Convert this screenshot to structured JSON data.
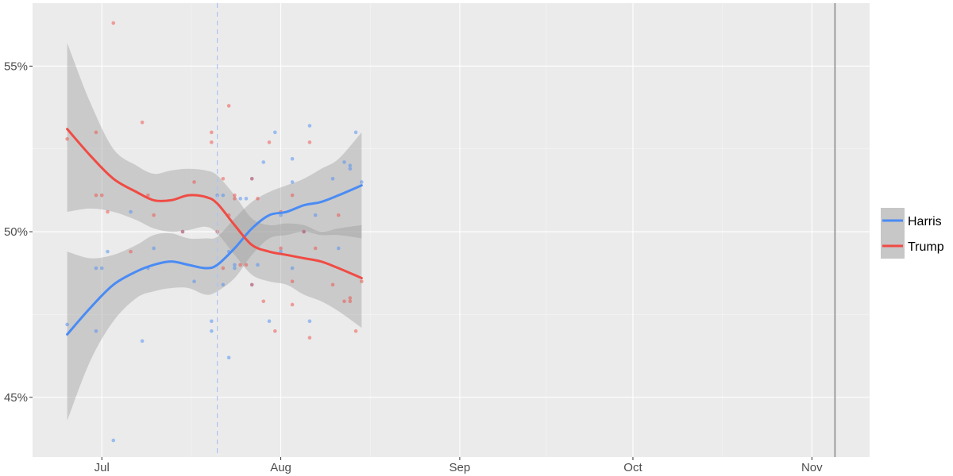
{
  "chart_data": {
    "type": "scatter",
    "title": "",
    "xlabel": "",
    "ylabel": "",
    "x_ticks": [
      {
        "date": "2024-07-01",
        "label": "Jul"
      },
      {
        "date": "2024-08-01",
        "label": "Aug"
      },
      {
        "date": "2024-09-01",
        "label": "Sep"
      },
      {
        "date": "2024-10-01",
        "label": "Oct"
      },
      {
        "date": "2024-11-01",
        "label": "Nov"
      }
    ],
    "y_ticks": [
      {
        "value": 45,
        "label": "45%"
      },
      {
        "value": 50,
        "label": "50%"
      },
      {
        "value": 55,
        "label": "55%"
      }
    ],
    "xlim": [
      "2024-06-19",
      "2024-11-11"
    ],
    "ylim": [
      43.2,
      56.9
    ],
    "grid": true,
    "legend_position": "right",
    "annotations": [
      {
        "type": "vline",
        "date": "2024-07-21",
        "style": "dashed",
        "color": "#a9c4f5"
      },
      {
        "type": "vline",
        "date": "2024-11-05",
        "style": "solid",
        "color": "#8c8c8c"
      }
    ],
    "series": [
      {
        "name": "Harris",
        "color": "#4a8bf4",
        "points": [
          [
            "2024-06-25",
            47.2
          ],
          [
            "2024-06-30",
            47.0
          ],
          [
            "2024-06-30",
            48.9
          ],
          [
            "2024-07-01",
            48.9
          ],
          [
            "2024-07-02",
            49.4
          ],
          [
            "2024-07-03",
            43.7
          ],
          [
            "2024-07-06",
            50.6
          ],
          [
            "2024-07-08",
            46.7
          ],
          [
            "2024-07-09",
            48.9
          ],
          [
            "2024-07-10",
            49.5
          ],
          [
            "2024-07-15",
            50.0
          ],
          [
            "2024-07-17",
            48.5
          ],
          [
            "2024-07-20",
            47.3
          ],
          [
            "2024-07-20",
            47.0
          ],
          [
            "2024-07-21",
            51.1
          ],
          [
            "2024-07-22",
            48.4
          ],
          [
            "2024-07-22",
            51.1
          ],
          [
            "2024-07-23",
            46.2
          ],
          [
            "2024-07-23",
            49.4
          ],
          [
            "2024-07-24",
            48.9
          ],
          [
            "2024-07-24",
            49.0
          ],
          [
            "2024-07-25",
            51.0
          ],
          [
            "2024-07-26",
            51.0
          ],
          [
            "2024-07-27",
            48.4
          ],
          [
            "2024-07-27",
            51.6
          ],
          [
            "2024-07-28",
            49.0
          ],
          [
            "2024-07-29",
            52.1
          ],
          [
            "2024-07-30",
            47.3
          ],
          [
            "2024-07-31",
            53.0
          ],
          [
            "2024-08-01",
            50.5
          ],
          [
            "2024-08-01",
            49.4
          ],
          [
            "2024-08-03",
            52.2
          ],
          [
            "2024-08-03",
            51.5
          ],
          [
            "2024-08-03",
            48.9
          ],
          [
            "2024-08-05",
            50.0
          ],
          [
            "2024-08-06",
            47.3
          ],
          [
            "2024-08-06",
            53.2
          ],
          [
            "2024-08-07",
            50.5
          ],
          [
            "2024-08-10",
            51.6
          ],
          [
            "2024-08-11",
            49.5
          ],
          [
            "2024-08-12",
            52.1
          ],
          [
            "2024-08-13",
            51.9
          ],
          [
            "2024-08-13",
            52.0
          ],
          [
            "2024-08-14",
            53.0
          ],
          [
            "2024-08-15",
            51.5
          ]
        ],
        "trend": [
          [
            "2024-06-25",
            46.9
          ],
          [
            "2024-06-29",
            47.7
          ],
          [
            "2024-07-03",
            48.4
          ],
          [
            "2024-07-07",
            48.8
          ],
          [
            "2024-07-10",
            49.0
          ],
          [
            "2024-07-13",
            49.1
          ],
          [
            "2024-07-16",
            49.0
          ],
          [
            "2024-07-19",
            48.9
          ],
          [
            "2024-07-21",
            49.0
          ],
          [
            "2024-07-24",
            49.5
          ],
          [
            "2024-07-27",
            50.1
          ],
          [
            "2024-07-30",
            50.5
          ],
          [
            "2024-08-02",
            50.6
          ],
          [
            "2024-08-05",
            50.8
          ],
          [
            "2024-08-08",
            50.9
          ],
          [
            "2024-08-11",
            51.1
          ],
          [
            "2024-08-15",
            51.4
          ]
        ],
        "ci_upper": [
          [
            "2024-06-25",
            49.4
          ],
          [
            "2024-06-29",
            49.2
          ],
          [
            "2024-07-03",
            49.3
          ],
          [
            "2024-07-07",
            49.6
          ],
          [
            "2024-07-10",
            49.9
          ],
          [
            "2024-07-13",
            49.95
          ],
          [
            "2024-07-16",
            49.8
          ],
          [
            "2024-07-19",
            49.8
          ],
          [
            "2024-07-21",
            49.85
          ],
          [
            "2024-07-24",
            50.4
          ],
          [
            "2024-07-27",
            50.9
          ],
          [
            "2024-07-30",
            51.2
          ],
          [
            "2024-08-02",
            51.4
          ],
          [
            "2024-08-05",
            51.6
          ],
          [
            "2024-08-08",
            51.9
          ],
          [
            "2024-08-11",
            52.2
          ],
          [
            "2024-08-15",
            53.0
          ]
        ],
        "ci_lower": [
          [
            "2024-06-25",
            44.3
          ],
          [
            "2024-06-29",
            46.1
          ],
          [
            "2024-07-03",
            47.3
          ],
          [
            "2024-07-07",
            48.0
          ],
          [
            "2024-07-10",
            48.2
          ],
          [
            "2024-07-13",
            48.3
          ],
          [
            "2024-07-16",
            48.3
          ],
          [
            "2024-07-19",
            48.1
          ],
          [
            "2024-07-21",
            48.2
          ],
          [
            "2024-07-24",
            48.6
          ],
          [
            "2024-07-27",
            49.3
          ],
          [
            "2024-07-30",
            49.8
          ],
          [
            "2024-08-02",
            49.9
          ],
          [
            "2024-08-05",
            50.0
          ],
          [
            "2024-08-08",
            49.9
          ],
          [
            "2024-08-11",
            49.9
          ],
          [
            "2024-08-15",
            49.8
          ]
        ]
      },
      {
        "name": "Trump",
        "color": "#f04b44",
        "points": [
          [
            "2024-06-25",
            52.8
          ],
          [
            "2024-06-30",
            53.0
          ],
          [
            "2024-06-30",
            51.1
          ],
          [
            "2024-07-01",
            51.1
          ],
          [
            "2024-07-02",
            50.6
          ],
          [
            "2024-07-03",
            56.3
          ],
          [
            "2024-07-06",
            49.4
          ],
          [
            "2024-07-08",
            53.3
          ],
          [
            "2024-07-09",
            51.1
          ],
          [
            "2024-07-10",
            50.5
          ],
          [
            "2024-07-15",
            50.0
          ],
          [
            "2024-07-17",
            51.5
          ],
          [
            "2024-07-20",
            52.7
          ],
          [
            "2024-07-20",
            53.0
          ],
          [
            "2024-07-21",
            50.0
          ],
          [
            "2024-07-22",
            51.6
          ],
          [
            "2024-07-22",
            48.9
          ],
          [
            "2024-07-23",
            53.8
          ],
          [
            "2024-07-23",
            50.5
          ],
          [
            "2024-07-24",
            51.1
          ],
          [
            "2024-07-24",
            51.0
          ],
          [
            "2024-07-25",
            49.0
          ],
          [
            "2024-07-26",
            49.0
          ],
          [
            "2024-07-27",
            51.6
          ],
          [
            "2024-07-27",
            48.4
          ],
          [
            "2024-07-28",
            51.0
          ],
          [
            "2024-07-29",
            47.9
          ],
          [
            "2024-07-30",
            52.7
          ],
          [
            "2024-07-31",
            47.0
          ],
          [
            "2024-08-01",
            49.5
          ],
          [
            "2024-08-01",
            50.6
          ],
          [
            "2024-08-03",
            47.8
          ],
          [
            "2024-08-03",
            48.5
          ],
          [
            "2024-08-03",
            51.1
          ],
          [
            "2024-08-05",
            50.0
          ],
          [
            "2024-08-06",
            52.7
          ],
          [
            "2024-08-06",
            46.8
          ],
          [
            "2024-08-07",
            49.5
          ],
          [
            "2024-08-10",
            48.4
          ],
          [
            "2024-08-11",
            50.5
          ],
          [
            "2024-08-12",
            47.9
          ],
          [
            "2024-08-13",
            48.0
          ],
          [
            "2024-08-13",
            47.9
          ],
          [
            "2024-08-14",
            47.0
          ],
          [
            "2024-08-15",
            48.5
          ]
        ],
        "trend": [
          [
            "2024-06-25",
            53.1
          ],
          [
            "2024-06-29",
            52.3
          ],
          [
            "2024-07-03",
            51.6
          ],
          [
            "2024-07-07",
            51.2
          ],
          [
            "2024-07-10",
            50.95
          ],
          [
            "2024-07-13",
            50.95
          ],
          [
            "2024-07-16",
            51.1
          ],
          [
            "2024-07-19",
            51.05
          ],
          [
            "2024-07-21",
            50.85
          ],
          [
            "2024-07-24",
            50.2
          ],
          [
            "2024-07-27",
            49.6
          ],
          [
            "2024-07-30",
            49.4
          ],
          [
            "2024-08-02",
            49.3
          ],
          [
            "2024-08-05",
            49.2
          ],
          [
            "2024-08-08",
            49.1
          ],
          [
            "2024-08-11",
            48.9
          ],
          [
            "2024-08-15",
            48.6
          ]
        ],
        "ci_upper": [
          [
            "2024-06-25",
            55.7
          ],
          [
            "2024-06-29",
            53.9
          ],
          [
            "2024-07-03",
            52.5
          ],
          [
            "2024-07-07",
            52.0
          ],
          [
            "2024-07-10",
            51.75
          ],
          [
            "2024-07-13",
            51.85
          ],
          [
            "2024-07-16",
            51.9
          ],
          [
            "2024-07-19",
            51.85
          ],
          [
            "2024-07-21",
            51.7
          ],
          [
            "2024-07-24",
            51.1
          ],
          [
            "2024-07-27",
            50.4
          ],
          [
            "2024-07-30",
            50.2
          ],
          [
            "2024-08-02",
            50.25
          ],
          [
            "2024-08-05",
            50.2
          ],
          [
            "2024-08-08",
            50.0
          ],
          [
            "2024-08-11",
            50.1
          ],
          [
            "2024-08-15",
            50.2
          ]
        ],
        "ci_lower": [
          [
            "2024-06-25",
            50.6
          ],
          [
            "2024-06-29",
            50.7
          ],
          [
            "2024-07-03",
            50.6
          ],
          [
            "2024-07-07",
            50.35
          ],
          [
            "2024-07-10",
            50.1
          ],
          [
            "2024-07-13",
            50.0
          ],
          [
            "2024-07-16",
            50.05
          ],
          [
            "2024-07-19",
            50.15
          ],
          [
            "2024-07-21",
            49.95
          ],
          [
            "2024-07-24",
            49.3
          ],
          [
            "2024-07-27",
            48.7
          ],
          [
            "2024-07-30",
            48.5
          ],
          [
            "2024-08-02",
            48.4
          ],
          [
            "2024-08-05",
            48.1
          ],
          [
            "2024-08-08",
            47.9
          ],
          [
            "2024-08-11",
            47.6
          ],
          [
            "2024-08-15",
            47.1
          ]
        ]
      }
    ]
  }
}
